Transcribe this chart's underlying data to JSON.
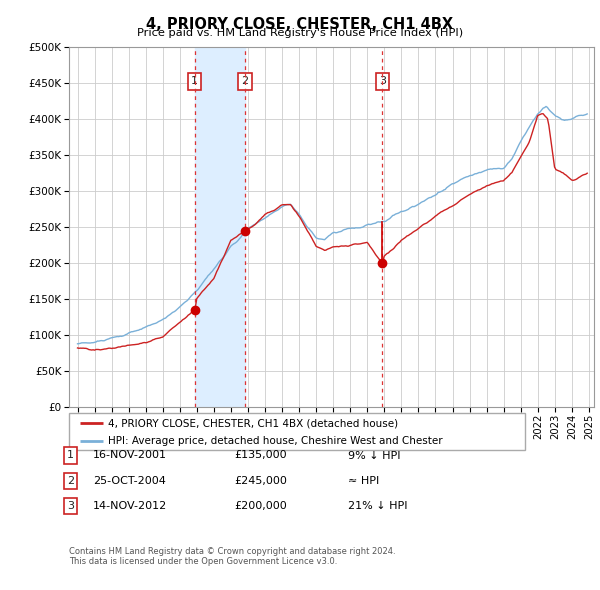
{
  "title": "4, PRIORY CLOSE, CHESTER, CH1 4BX",
  "subtitle": "Price paid vs. HM Land Registry's House Price Index (HPI)",
  "legend_line1": "4, PRIORY CLOSE, CHESTER, CH1 4BX (detached house)",
  "legend_line2": "HPI: Average price, detached house, Cheshire West and Chester",
  "footer1": "Contains HM Land Registry data © Crown copyright and database right 2024.",
  "footer2": "This data is licensed under the Open Government Licence v3.0.",
  "sale_points": [
    {
      "num": 1,
      "date": "16-NOV-2001",
      "price": 135000,
      "label": "9% ↓ HPI",
      "x_year": 2001.88
    },
    {
      "num": 2,
      "date": "25-OCT-2004",
      "price": 245000,
      "label": "≈ HPI",
      "x_year": 2004.82
    },
    {
      "num": 3,
      "date": "14-NOV-2012",
      "price": 200000,
      "label": "21% ↓ HPI",
      "x_year": 2012.88
    }
  ],
  "shade_pairs": [
    [
      0,
      1
    ]
  ],
  "shade_color": "#ddeeff",
  "vline_color": "#dd3333",
  "sale_marker_color": "#cc0000",
  "hpi_color": "#7ab0d8",
  "price_color": "#cc2222",
  "background_color": "#ffffff",
  "grid_color": "#cccccc",
  "ylim": [
    0,
    500000
  ],
  "yticks": [
    0,
    50000,
    100000,
    150000,
    200000,
    250000,
    300000,
    350000,
    400000,
    450000,
    500000
  ],
  "xlim_start": 1994.5,
  "xlim_end": 2025.3
}
